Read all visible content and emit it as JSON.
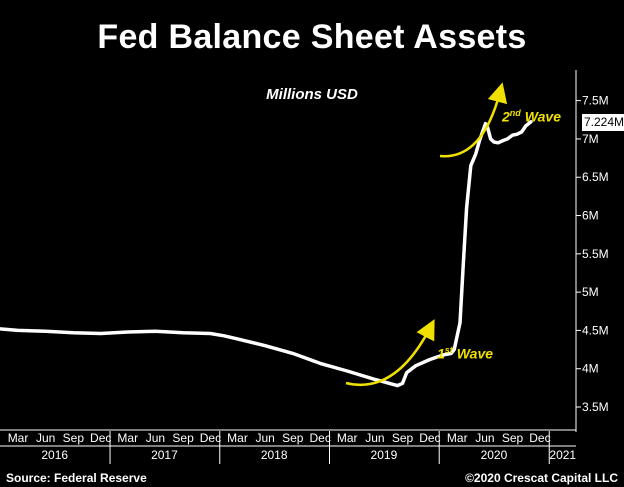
{
  "chart_data": {
    "type": "line",
    "title": "Fed Balance Sheet Assets",
    "subtitle": "Millions USD",
    "y_unit": "millions USD",
    "ylim": [
      3200000,
      7900000
    ],
    "y_ticks": [
      3500000,
      4000000,
      4500000,
      5000000,
      5500000,
      6000000,
      6500000,
      7000000,
      7500000
    ],
    "y_tick_labels": [
      "3.5M",
      "4M",
      "4.5M",
      "5M",
      "5.5M",
      "6M",
      "6.5M",
      "7M",
      "7.5M"
    ],
    "x_range": [
      "2016-01-01",
      "2021-03-31"
    ],
    "month_ticks": [
      {
        "label": "Mar",
        "date": "2016-03-01"
      },
      {
        "label": "Jun",
        "date": "2016-06-01"
      },
      {
        "label": "Sep",
        "date": "2016-09-01"
      },
      {
        "label": "Dec",
        "date": "2016-12-01"
      },
      {
        "label": "Mar",
        "date": "2017-03-01"
      },
      {
        "label": "Jun",
        "date": "2017-06-01"
      },
      {
        "label": "Sep",
        "date": "2017-09-01"
      },
      {
        "label": "Dec",
        "date": "2017-12-01"
      },
      {
        "label": "Mar",
        "date": "2018-03-01"
      },
      {
        "label": "Jun",
        "date": "2018-06-01"
      },
      {
        "label": "Sep",
        "date": "2018-09-01"
      },
      {
        "label": "Dec",
        "date": "2018-12-01"
      },
      {
        "label": "Mar",
        "date": "2019-03-01"
      },
      {
        "label": "Jun",
        "date": "2019-06-01"
      },
      {
        "label": "Sep",
        "date": "2019-09-01"
      },
      {
        "label": "Dec",
        "date": "2019-12-01"
      },
      {
        "label": "Mar",
        "date": "2020-03-01"
      },
      {
        "label": "Jun",
        "date": "2020-06-01"
      },
      {
        "label": "Sep",
        "date": "2020-09-01"
      },
      {
        "label": "Dec",
        "date": "2020-12-01"
      }
    ],
    "year_labels": [
      {
        "label": "2016",
        "date": "2016-07-01"
      },
      {
        "label": "2017",
        "date": "2017-07-01"
      },
      {
        "label": "2018",
        "date": "2018-07-01"
      },
      {
        "label": "2019",
        "date": "2019-07-01"
      },
      {
        "label": "2020",
        "date": "2020-07-01"
      },
      {
        "label": "2021",
        "date": "2021-02-15"
      }
    ],
    "year_dividers": [
      "2017-01-01",
      "2018-01-01",
      "2019-01-01",
      "2020-01-01",
      "2021-01-01"
    ],
    "series": [
      {
        "color": "#ffffff",
        "x": [
          "2016-01-01",
          "2016-03-01",
          "2016-06-01",
          "2016-09-01",
          "2016-12-01",
          "2017-03-01",
          "2017-06-01",
          "2017-09-01",
          "2017-12-01",
          "2018-01-15",
          "2018-03-01",
          "2018-06-01",
          "2018-09-01",
          "2018-12-01",
          "2019-03-01",
          "2019-06-01",
          "2019-08-15",
          "2019-09-01",
          "2019-09-15",
          "2019-10-15",
          "2019-12-01",
          "2020-01-15",
          "2020-02-10",
          "2020-02-20",
          "2020-03-10",
          "2020-03-20",
          "2020-04-01",
          "2020-04-15",
          "2020-05-01",
          "2020-05-15",
          "2020-06-03",
          "2020-06-10",
          "2020-06-20",
          "2020-07-01",
          "2020-07-15",
          "2020-08-01",
          "2020-08-15",
          "2020-09-01",
          "2020-09-15",
          "2020-10-01",
          "2020-10-15",
          "2020-11-01"
        ],
        "y": [
          4520000,
          4500000,
          4490000,
          4470000,
          4460000,
          4480000,
          4490000,
          4470000,
          4460000,
          4430000,
          4390000,
          4300000,
          4200000,
          4070000,
          3970000,
          3860000,
          3780000,
          3810000,
          3950000,
          4040000,
          4120000,
          4180000,
          4200000,
          4250000,
          4600000,
          5300000,
          6100000,
          6650000,
          6800000,
          6990000,
          7200000,
          7150000,
          7000000,
          6960000,
          6950000,
          6980000,
          7000000,
          7050000,
          7060000,
          7090000,
          7170000,
          7224000
        ]
      }
    ],
    "last_value_label": "7.224M",
    "annotations": [
      {
        "label": "1",
        "sup": "st",
        "text": "Wave"
      },
      {
        "label": "2",
        "sup": "nd",
        "text": "Wave"
      }
    ],
    "source": "Source: Federal Reserve",
    "copyright": "©2020 Crescat Capital LLC",
    "colors": {
      "background": "#000000",
      "line": "#ffffff",
      "annotation": "#f0e000"
    }
  }
}
